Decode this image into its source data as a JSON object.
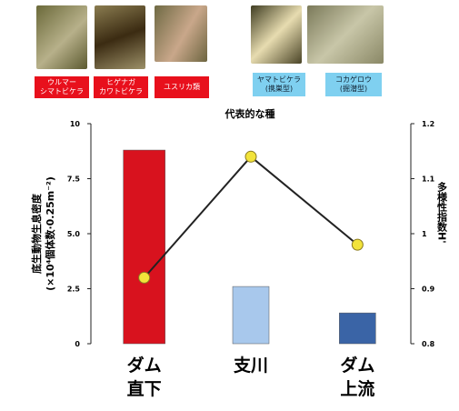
{
  "species": [
    "ウルマー\nシマトビケラ",
    "ヒゲナガ\nカワトビケラ",
    "ユスリカ類",
    "ヤマトビケラ\n(携巣型)",
    "コカゲロウ\n(掘潜型)"
  ],
  "chart_data": {
    "type": "bar-line",
    "title": "代表的な種",
    "categories": [
      "ダム\n直下",
      "支川",
      "ダム\n上流"
    ],
    "ylabel": "底生動物生息密度\n(×10⁴個体数·0.25m⁻²)",
    "y2label": "多様性指数H'",
    "ylim": [
      0,
      10
    ],
    "yticks": [
      0,
      2.5,
      {
        "value": 5,
        "label": "5.0"
      },
      7.5,
      10
    ],
    "y2lim": [
      0.8,
      1.2
    ],
    "y2ticks": [
      0.8,
      0.9,
      1,
      1.1,
      1.2
    ],
    "series": [
      {
        "type": "bar",
        "colors": [
          "#d8121e",
          "#a8c8ec",
          "#3a64a6"
        ],
        "values": [
          8.8,
          2.6,
          1.4
        ]
      },
      {
        "type": "line",
        "axis": "y2",
        "color": "#222222",
        "marker_color": "#f2e33a",
        "values": [
          0.92,
          1.14,
          0.98
        ]
      }
    ]
  }
}
